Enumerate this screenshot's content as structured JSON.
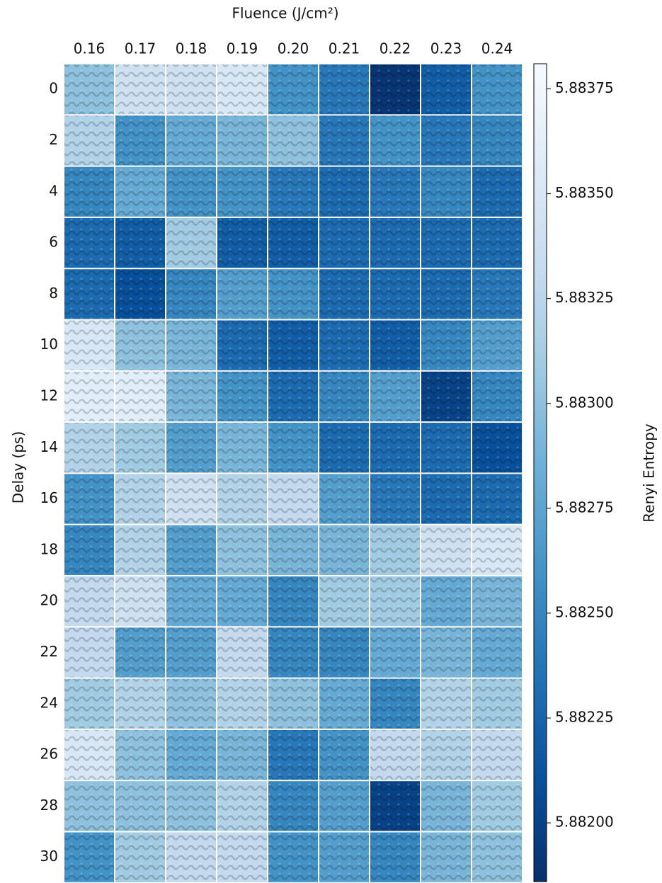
{
  "chart_data": {
    "type": "heatmap",
    "xlabel": "Fluence (J/cm²)",
    "ylabel": "Delay (ps)",
    "colorbar_label": "Renyi Entropy",
    "x": [
      "0.16",
      "0.17",
      "0.18",
      "0.19",
      "0.20",
      "0.21",
      "0.22",
      "0.23",
      "0.24"
    ],
    "y": [
      "0",
      "2",
      "4",
      "6",
      "8",
      "10",
      "12",
      "14",
      "16",
      "18",
      "20",
      "22",
      "24",
      "26",
      "28",
      "30"
    ],
    "values": [
      [
        5.883,
        5.8834,
        5.8834,
        5.8835,
        5.8826,
        5.8824,
        5.8819,
        5.8822,
        5.8826
      ],
      [
        5.8832,
        5.8826,
        5.8828,
        5.8829,
        5.883,
        5.8824,
        5.8826,
        5.8824,
        5.8825
      ],
      [
        5.8825,
        5.8828,
        5.8826,
        5.8826,
        5.8824,
        5.8823,
        5.8824,
        5.8825,
        5.8823
      ],
      [
        5.8823,
        5.8822,
        5.8831,
        5.8822,
        5.8822,
        5.8823,
        5.8823,
        5.8823,
        5.8823
      ],
      [
        5.8823,
        5.8821,
        5.8825,
        5.8827,
        5.8826,
        5.8823,
        5.8823,
        5.8823,
        5.8824
      ],
      [
        5.8835,
        5.883,
        5.8829,
        5.8823,
        5.8822,
        5.8823,
        5.8822,
        5.8825,
        5.8827
      ],
      [
        5.8836,
        5.8836,
        5.8829,
        5.8826,
        5.8823,
        5.8825,
        5.8827,
        5.882,
        5.8825
      ],
      [
        5.8832,
        5.8831,
        5.8827,
        5.8829,
        5.8826,
        5.8823,
        5.8823,
        5.8823,
        5.8821
      ],
      [
        5.8826,
        5.8832,
        5.8834,
        5.8832,
        5.8833,
        5.8827,
        5.8824,
        5.8823,
        5.8823
      ],
      [
        5.8825,
        5.8832,
        5.8827,
        5.883,
        5.8829,
        5.8829,
        5.8831,
        5.8834,
        5.8835
      ],
      [
        5.8833,
        5.8834,
        5.8828,
        5.8828,
        5.8825,
        5.8831,
        5.8831,
        5.8828,
        5.8829
      ],
      [
        5.8833,
        5.8827,
        5.8827,
        5.8833,
        5.8825,
        5.8825,
        5.8828,
        5.8829,
        5.8828
      ],
      [
        5.8831,
        5.8832,
        5.883,
        5.8832,
        5.883,
        5.8828,
        5.8825,
        5.8832,
        5.8831
      ],
      [
        5.8835,
        5.883,
        5.8828,
        5.8829,
        5.8824,
        5.8826,
        5.8833,
        5.8832,
        5.8833
      ],
      [
        5.883,
        5.883,
        5.883,
        5.8832,
        5.8825,
        5.8827,
        5.882,
        5.8829,
        5.8831
      ],
      [
        5.8826,
        5.8831,
        5.8833,
        5.8833,
        5.8826,
        5.8827,
        5.8825,
        5.8829,
        5.883
      ]
    ],
    "clim": [
      5.88186,
      5.88381
    ],
    "cticks": [
      5.88375,
      {
        "value": 5.8835,
        "label": "5.88350"
      },
      5.88325,
      {
        "value": 5.883,
        "label": "5.88300"
      },
      5.88275,
      {
        "value": 5.8825,
        "label": "5.88250"
      },
      5.88225,
      {
        "value": 5.882,
        "label": "5.88200"
      }
    ],
    "colormap": [
      "#08306b",
      "#08519c",
      "#2171b5",
      "#4292c6",
      "#6baed6",
      "#9ecae1",
      "#c6dbef",
      "#deebf7",
      "#f7fbff"
    ]
  }
}
